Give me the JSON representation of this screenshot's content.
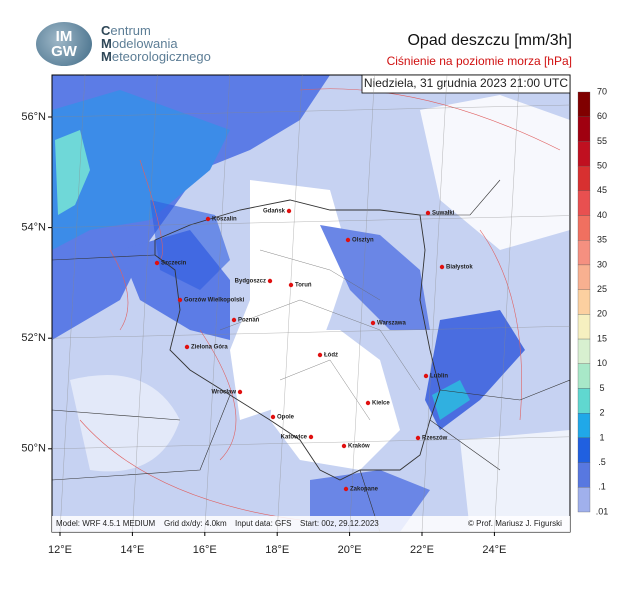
{
  "header": {
    "logo": [
      "IM",
      "GW"
    ],
    "organization": [
      "Centrum",
      "Modelowania",
      "Meteorologicznego"
    ],
    "title": "Opad deszczu [mm/3h]",
    "subtitle": "Ciśnienie na poziomie morza [hPa]"
  },
  "map": {
    "valid_time": "Niedziela, 31 grudnia 2023 21:00 UTC",
    "lat_ticks": [
      {
        "value": 56,
        "label": "56°N"
      },
      {
        "value": 54,
        "label": "54°N"
      },
      {
        "value": 52,
        "label": "52°N"
      },
      {
        "value": 50,
        "label": "50°N"
      }
    ],
    "lon_ticks": [
      {
        "value": 12,
        "label": "12°E"
      },
      {
        "value": 14,
        "label": "14°E"
      },
      {
        "value": 16,
        "label": "16°E"
      },
      {
        "value": 18,
        "label": "18°E"
      },
      {
        "value": 20,
        "label": "20°E"
      },
      {
        "value": 22,
        "label": "22°E"
      },
      {
        "value": 24,
        "label": "24°E"
      }
    ],
    "cities": [
      "Suwałki",
      "Gdańsk",
      "Koszalin",
      "Olsztyn",
      "Białystok",
      "Szczecin",
      "Bydgoszcz",
      "Toruń",
      "Gorzów Wielkopolski",
      "Poznań",
      "Warszawa",
      "Zielona Góra",
      "Łódź",
      "Lublin",
      "Wrocław",
      "Kielce",
      "Opole",
      "Katowice",
      "Rzeszów",
      "Kraków",
      "Zakopane"
    ],
    "footer": [
      "Model: WRF 4.5.1 MEDIUM",
      "Grid dx/dy: 4.0km",
      "Input data: GFS",
      "Start: 00z, 29.12.2023",
      "© Prof. Mariusz J. Figurski"
    ]
  },
  "colorbar": {
    "levels": [
      70,
      60,
      55,
      50,
      45,
      40,
      35,
      30,
      25,
      20,
      15,
      10,
      5,
      2,
      1,
      {
        "value": 0.5,
        "label": ".5"
      },
      {
        "value": 0.1,
        "label": ".1"
      },
      {
        "value": 0.01,
        "label": ".01"
      }
    ],
    "colors": [
      "#800000",
      "#a00010",
      "#c01020",
      "#d83030",
      "#e85050",
      "#f07060",
      "#f59080",
      "#f8b090",
      "#fcd0a0",
      "#f6f0c0",
      "#d8f0d0",
      "#a8e8c8",
      "#60d8d0",
      "#20a8e8",
      "#2060e0",
      "#5878e0",
      "#a0b0ec"
    ]
  }
}
